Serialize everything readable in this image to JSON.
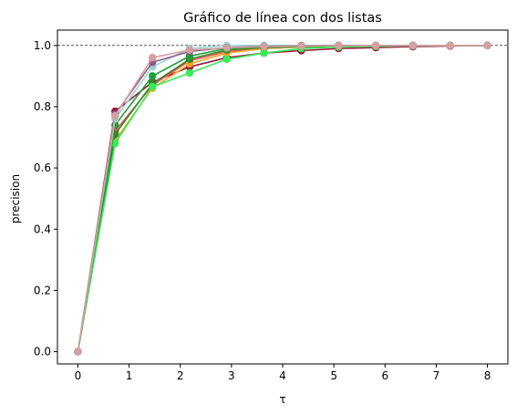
{
  "chart_data": {
    "type": "line",
    "title": "Gráfico de línea con dos listas",
    "xlabel": "τ",
    "ylabel": "precision",
    "xlim": [
      -0.4,
      8.4
    ],
    "ylim": [
      -0.04,
      1.05
    ],
    "xticks": [
      "0",
      "1",
      "2",
      "3",
      "4",
      "5",
      "6",
      "7",
      "8"
    ],
    "xtick_values": [
      0,
      1,
      2,
      3,
      4,
      5,
      6,
      7,
      8
    ],
    "yticks": [
      "0.0",
      "0.2",
      "0.4",
      "0.6",
      "0.8",
      "1.0"
    ],
    "ytick_values": [
      0.0,
      0.2,
      0.4,
      0.6,
      0.8,
      1.0
    ],
    "reference_line": {
      "y": 1.0,
      "style": "dashed",
      "color": "#555555"
    },
    "grid": false,
    "x": [
      0,
      0.727,
      1.455,
      2.182,
      2.909,
      3.636,
      4.364,
      5.091,
      5.818,
      6.545,
      7.273,
      8.0
    ],
    "series": [
      {
        "color": "#a0153e",
        "values": [
          0,
          0.785,
          0.88,
          0.93,
          0.96,
          0.975,
          0.983,
          0.99,
          0.993,
          0.996,
          0.998,
          1.0
        ]
      },
      {
        "color": "#ff4d4d",
        "values": [
          0,
          0.72,
          0.87,
          0.95,
          0.98,
          0.99,
          0.995,
          0.997,
          0.998,
          0.999,
          1.0,
          1.0
        ]
      },
      {
        "color": "#f5a623",
        "values": [
          0,
          0.69,
          0.86,
          0.94,
          0.975,
          0.99,
          0.995,
          0.997,
          0.998,
          0.999,
          1.0,
          1.0
        ]
      },
      {
        "color": "#2e8b2e",
        "values": [
          0,
          0.71,
          0.875,
          0.955,
          0.985,
          0.993,
          0.996,
          0.998,
          0.999,
          1.0,
          1.0,
          1.0
        ]
      },
      {
        "color": "#33ee55",
        "values": [
          0,
          0.68,
          0.865,
          0.91,
          0.955,
          0.975,
          0.99,
          0.995,
          0.997,
          0.999,
          1.0,
          1.0
        ]
      },
      {
        "color": "#1f9e3a",
        "values": [
          0,
          0.74,
          0.9,
          0.965,
          0.99,
          0.996,
          0.998,
          0.999,
          1.0,
          1.0,
          1.0,
          1.0
        ]
      },
      {
        "color": "#9bd4d4",
        "values": [
          0,
          0.76,
          0.93,
          0.99,
          1.0,
          1.0,
          1.0,
          1.0,
          1.0,
          1.0,
          1.0,
          1.0
        ]
      },
      {
        "color": "#8a5a8a",
        "values": [
          0,
          0.775,
          0.945,
          0.98,
          0.993,
          0.997,
          0.999,
          1.0,
          1.0,
          1.0,
          1.0,
          1.0
        ]
      },
      {
        "color": "#d4a0a0",
        "values": [
          0,
          0.77,
          0.96,
          0.985,
          0.992,
          0.996,
          0.998,
          0.999,
          1.0,
          1.0,
          1.0,
          1.0
        ]
      }
    ]
  }
}
